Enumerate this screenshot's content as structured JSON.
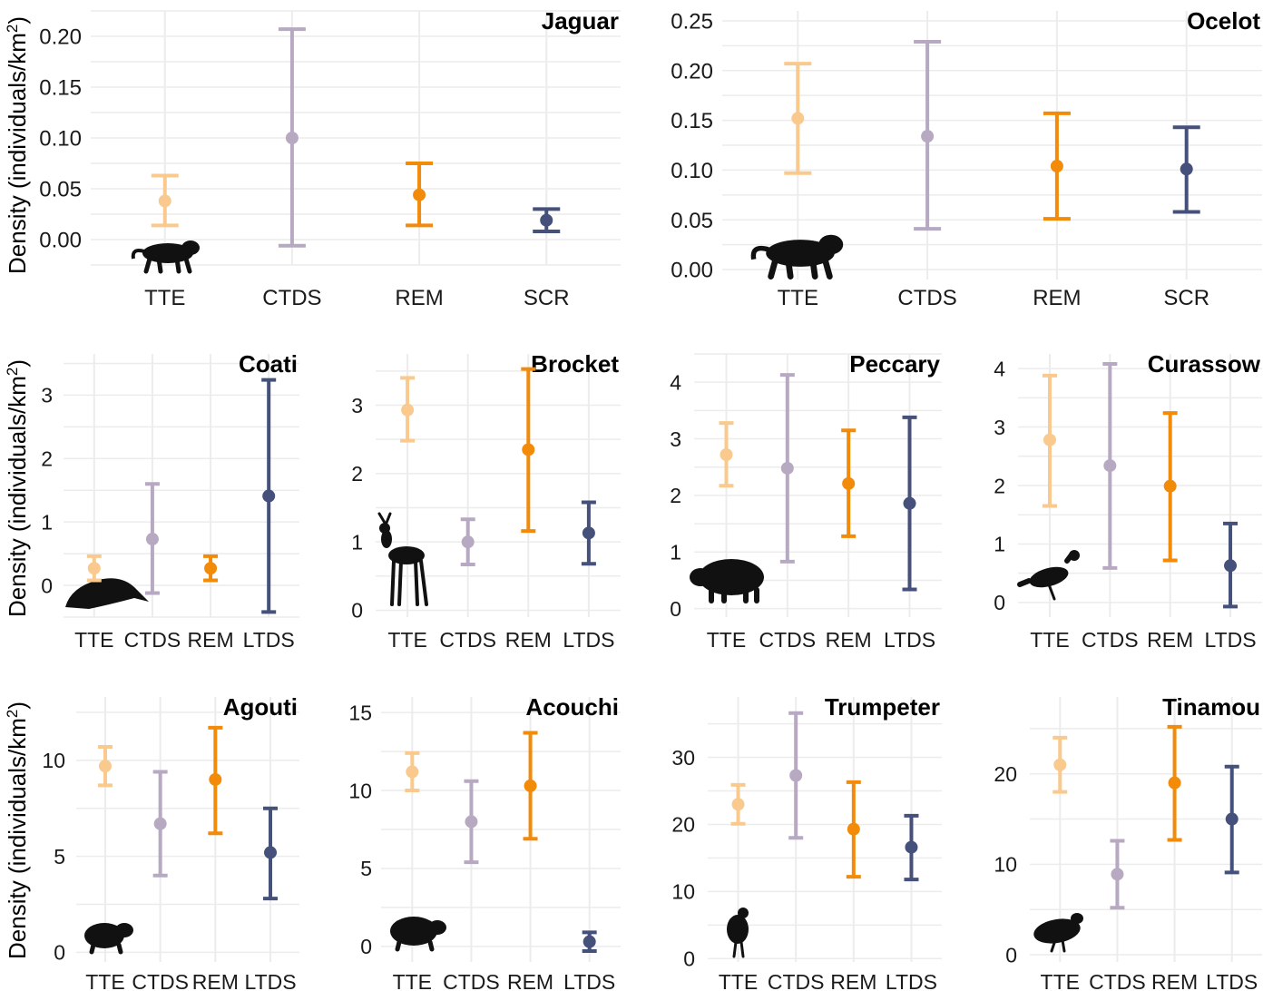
{
  "y_axis_label": {
    "prefix": "Density (individuals/km",
    "sup": "2",
    "suffix": ")"
  },
  "colors": {
    "TTE": "#f9c98d",
    "CTDS": "#b7a9c1",
    "REM": "#f28a0a",
    "SCR": "#45507b",
    "LTDS": "#45507b",
    "grid": "#ececec",
    "silhouette": "#111111"
  },
  "chart_data": [
    {
      "type": "errorbar",
      "title": "Jaguar",
      "silhouette": "jaguar",
      "categories": [
        "TTE",
        "CTDS",
        "REM",
        "SCR"
      ],
      "ylim": [
        -0.025,
        0.225
      ],
      "yticks": [
        0.0,
        0.05,
        0.1,
        0.15,
        0.2
      ],
      "ytick_labels": [
        "0.00",
        "0.05",
        "0.10",
        "0.15",
        "0.20"
      ],
      "estimates": [
        0.038,
        0.1,
        0.044,
        0.019
      ],
      "lower": [
        0.014,
        -0.006,
        0.014,
        0.008
      ],
      "upper": [
        0.063,
        0.207,
        0.075,
        0.03
      ]
    },
    {
      "type": "errorbar",
      "title": "Ocelot",
      "silhouette": "ocelot",
      "categories": [
        "TTE",
        "CTDS",
        "REM",
        "SCR"
      ],
      "ylim": [
        -0.01,
        0.26
      ],
      "yticks": [
        0.0,
        0.05,
        0.1,
        0.15,
        0.2,
        0.25
      ],
      "ytick_labels": [
        "0.00",
        "0.05",
        "0.10",
        "0.15",
        "0.20",
        "0.25"
      ],
      "estimates": [
        0.152,
        0.134,
        0.104,
        0.101
      ],
      "lower": [
        0.097,
        0.041,
        0.051,
        0.058
      ],
      "upper": [
        0.207,
        0.229,
        0.157,
        0.143
      ]
    },
    {
      "type": "errorbar",
      "title": "Coati",
      "silhouette": "coati",
      "categories": [
        "TTE",
        "CTDS",
        "REM",
        "LTDS"
      ],
      "ylim": [
        -0.5,
        3.65
      ],
      "yticks": [
        0,
        1,
        2,
        3
      ],
      "ytick_labels": [
        "0",
        "1",
        "2",
        "3"
      ],
      "estimates": [
        0.27,
        0.73,
        0.27,
        1.41
      ],
      "lower": [
        0.08,
        -0.12,
        0.08,
        -0.42
      ],
      "upper": [
        0.46,
        1.6,
        0.46,
        3.24
      ]
    },
    {
      "type": "errorbar",
      "title": "Brocket",
      "silhouette": "brocket",
      "categories": [
        "TTE",
        "CTDS",
        "REM",
        "LTDS"
      ],
      "ylim": [
        -0.1,
        3.75
      ],
      "yticks": [
        0,
        1,
        2,
        3
      ],
      "ytick_labels": [
        "0",
        "1",
        "2",
        "3"
      ],
      "estimates": [
        2.93,
        1.0,
        2.35,
        1.13
      ],
      "lower": [
        2.48,
        0.67,
        1.16,
        0.68
      ],
      "upper": [
        3.4,
        1.33,
        3.53,
        1.58
      ]
    },
    {
      "type": "errorbar",
      "title": "Peccary",
      "silhouette": "peccary",
      "categories": [
        "TTE",
        "CTDS",
        "REM",
        "LTDS"
      ],
      "ylim": [
        -0.15,
        4.5
      ],
      "yticks": [
        0,
        1,
        2,
        3,
        4
      ],
      "ytick_labels": [
        "0",
        "1",
        "2",
        "3",
        "4"
      ],
      "estimates": [
        2.72,
        2.48,
        2.21,
        1.86
      ],
      "lower": [
        2.17,
        0.83,
        1.28,
        0.34
      ],
      "upper": [
        3.28,
        4.13,
        3.15,
        3.38
      ]
    },
    {
      "type": "errorbar",
      "title": "Curassow",
      "silhouette": "curassow",
      "categories": [
        "TTE",
        "CTDS",
        "REM",
        "LTDS"
      ],
      "ylim": [
        -0.25,
        4.25
      ],
      "yticks": [
        0,
        1,
        2,
        3,
        4
      ],
      "ytick_labels": [
        "0",
        "1",
        "2",
        "3",
        "4"
      ],
      "estimates": [
        2.78,
        2.34,
        1.99,
        0.63
      ],
      "lower": [
        1.65,
        0.59,
        0.72,
        -0.07
      ],
      "upper": [
        3.88,
        4.08,
        3.24,
        1.35
      ]
    },
    {
      "type": "errorbar",
      "title": "Agouti",
      "silhouette": "agouti",
      "categories": [
        "TTE",
        "CTDS",
        "REM",
        "LTDS"
      ],
      "ylim": [
        -0.5,
        13.3
      ],
      "yticks": [
        0,
        5,
        10
      ],
      "ytick_labels": [
        "0",
        "5",
        "10"
      ],
      "estimates": [
        9.7,
        6.7,
        9.0,
        5.2
      ],
      "lower": [
        8.7,
        4.0,
        6.2,
        2.8
      ],
      "upper": [
        10.7,
        9.4,
        11.7,
        7.5
      ]
    },
    {
      "type": "errorbar",
      "title": "Acouchi",
      "silhouette": "acouchi",
      "categories": [
        "TTE",
        "CTDS",
        "REM",
        "LTDS"
      ],
      "ylim": [
        -1.0,
        16.0
      ],
      "yticks": [
        0,
        5,
        10,
        15
      ],
      "ytick_labels": [
        "0",
        "5",
        "10",
        "15"
      ],
      "estimates": [
        11.2,
        8.0,
        10.3,
        0.3
      ],
      "lower": [
        10.0,
        5.4,
        6.9,
        -0.3
      ],
      "upper": [
        12.4,
        10.6,
        13.7,
        0.9
      ]
    },
    {
      "type": "errorbar",
      "title": "Trumpeter",
      "silhouette": "trumpeter",
      "categories": [
        "TTE",
        "CTDS",
        "REM",
        "LTDS"
      ],
      "ylim": [
        -0.5,
        39.0
      ],
      "yticks": [
        0,
        10,
        20,
        30
      ],
      "ytick_labels": [
        "0",
        "10",
        "20",
        "30"
      ],
      "estimates": [
        23.0,
        27.3,
        19.3,
        16.6
      ],
      "lower": [
        20.1,
        18.0,
        12.2,
        11.8
      ],
      "upper": [
        25.9,
        36.6,
        26.3,
        21.3
      ]
    },
    {
      "type": "errorbar",
      "title": "Tinamou",
      "silhouette": "tinamou",
      "categories": [
        "TTE",
        "CTDS",
        "REM",
        "LTDS"
      ],
      "ylim": [
        -0.8,
        28.5
      ],
      "yticks": [
        0,
        10,
        20
      ],
      "ytick_labels": [
        "0",
        "10",
        "20"
      ],
      "estimates": [
        21.0,
        8.9,
        19.0,
        15.0
      ],
      "lower": [
        18.0,
        5.2,
        12.7,
        9.1
      ],
      "upper": [
        24.0,
        12.6,
        25.2,
        20.8
      ]
    }
  ]
}
